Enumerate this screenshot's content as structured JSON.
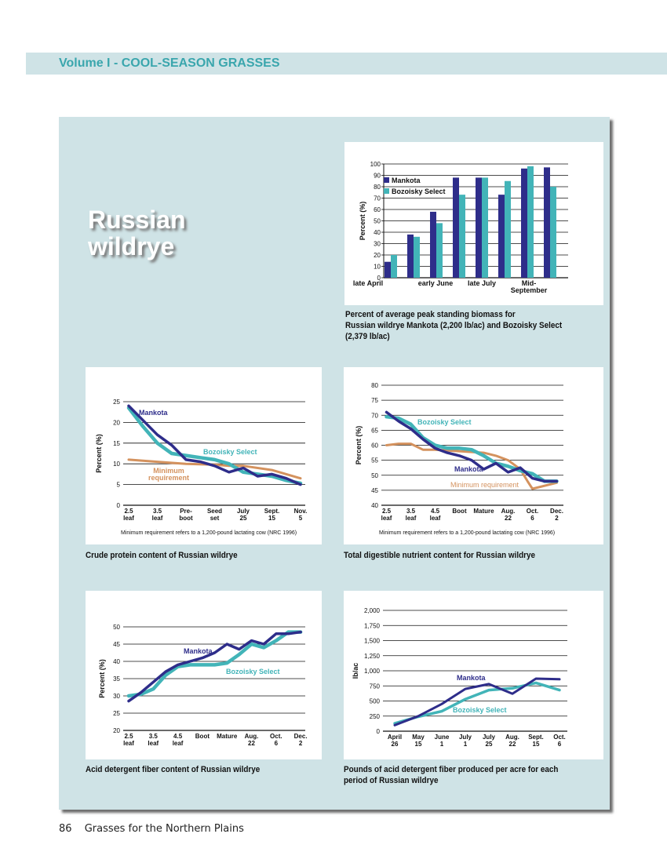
{
  "header": {
    "section_title": "Volume I - COOL-SEASON GRASSES"
  },
  "species_title": [
    "Russian",
    "wildrye"
  ],
  "footer": {
    "page_number": "86",
    "book_title": "Grasses for the Northern Plains"
  },
  "colors": {
    "mankota": "#2e2d8a",
    "bozoisky": "#42b4b8",
    "minimum": "#d4925e",
    "panel": "#cfe3e6",
    "band_text": "#3aa6ad"
  },
  "captions": {
    "biomass": [
      "Percent of average peak standing biomass for",
      "Russian wildrye Mankota (2,200 lb/ac) and Bozoisky Select",
      "(2,379 lb/ac)"
    ],
    "protein": [
      "Crude protein content of Russian wildrye"
    ],
    "tdn": [
      "Total digestible nutrient content for Russian wildrye"
    ],
    "adf": [
      "Acid detergent fiber content of Russian wildrye"
    ],
    "adf_lb": [
      "Pounds of acid detergent fiber produced per acre for each",
      "period of Russian wildrye"
    ]
  },
  "chart_data": [
    {
      "id": "biomass",
      "type": "bar",
      "ylabel": "Percent (%)",
      "ylim": [
        0,
        100
      ],
      "yticks": [
        0,
        10,
        20,
        30,
        40,
        50,
        60,
        70,
        80,
        90,
        100
      ],
      "xlabels": [
        [
          "late April"
        ],
        [
          "early June"
        ],
        [
          "late July"
        ],
        [
          "Mid-",
          "September"
        ]
      ],
      "legend": "top-left",
      "series": [
        {
          "name": "Mankota",
          "color": "#2e2d8a",
          "values": [
            14,
            38,
            58,
            88,
            88,
            73,
            96,
            97
          ]
        },
        {
          "name": "Bozoisky Select",
          "color": "#42b4b8",
          "values": [
            20,
            36,
            48,
            73,
            88,
            85,
            98,
            80
          ]
        }
      ]
    },
    {
      "id": "protein",
      "type": "line",
      "ylabel": "Percent (%)",
      "ylim": [
        0,
        25
      ],
      "yticks": [
        0,
        5,
        10,
        15,
        20,
        25
      ],
      "categories": [
        [
          "2.5",
          "leaf"
        ],
        [
          "3.5",
          "leaf"
        ],
        [
          "Pre-",
          "boot"
        ],
        [
          "Seed",
          "set"
        ],
        [
          "July",
          "25"
        ],
        [
          "Sept.",
          "15"
        ],
        [
          "Nov.",
          "5"
        ]
      ],
      "note": "Minimum requirement refers to a 1,200-pound lactating cow (NRC 1996)",
      "series": [
        {
          "name": "Mankota",
          "color": "#2e2d8a",
          "label": "Mankota",
          "x": [
            0,
            0.5,
            1,
            1.5,
            2,
            2.5,
            3,
            3.5,
            4,
            4.5,
            5,
            5.5,
            6
          ],
          "y": [
            24,
            20.5,
            17,
            14.5,
            11,
            10.5,
            9.5,
            8,
            9,
            7,
            7.5,
            6.5,
            5
          ]
        },
        {
          "name": "Bozoisky Select",
          "color": "#42b4b8",
          "label": "Bozoisky Select",
          "x": [
            0,
            0.5,
            1,
            1.5,
            2,
            2.5,
            3,
            3.5,
            4,
            4.5,
            5,
            5.5,
            6
          ],
          "y": [
            23.5,
            19,
            15,
            12.5,
            12,
            11.5,
            11,
            10,
            8,
            7.5,
            7,
            6,
            5.3
          ]
        },
        {
          "name": "Minimum requirement",
          "color": "#d4925e",
          "label": [
            "Minimum",
            "requirement"
          ],
          "x": [
            0,
            1,
            2,
            3,
            3.5,
            4,
            5,
            6
          ],
          "y": [
            11,
            10.5,
            10,
            9.8,
            9.5,
            9.5,
            8.5,
            6.5
          ]
        }
      ]
    },
    {
      "id": "tdn",
      "type": "line",
      "ylabel": "Percent (%)",
      "ylim": [
        40,
        80
      ],
      "yticks": [
        40,
        45,
        50,
        55,
        60,
        65,
        70,
        75,
        80
      ],
      "categories": [
        [
          "2.5",
          "leaf"
        ],
        [
          "3.5",
          "leaf"
        ],
        [
          "4.5",
          "leaf"
        ],
        [
          "Boot"
        ],
        [
          "Mature"
        ],
        [
          "Aug.",
          "22"
        ],
        [
          "Oct.",
          "6"
        ],
        [
          "Dec.",
          "2"
        ]
      ],
      "note": "Minimum requirement refers to a 1,200-pound lactating cow (NRC 1996)",
      "series": [
        {
          "name": "Mankota",
          "color": "#2e2d8a",
          "label": "Mankota",
          "x": [
            0,
            0.5,
            1,
            1.5,
            2,
            2.5,
            3,
            3.5,
            4,
            4.5,
            5,
            5.5,
            6,
            6.5,
            7
          ],
          "y": [
            71,
            68,
            65.5,
            62,
            59,
            57.5,
            56.5,
            55,
            52,
            54,
            51,
            52.5,
            49,
            48,
            48
          ]
        },
        {
          "name": "Bozoisky Select",
          "color": "#42b4b8",
          "label": "Bozoisky Select",
          "x": [
            0,
            0.5,
            1,
            1.5,
            2,
            2.5,
            3,
            3.5,
            4,
            4.5,
            5,
            5.5,
            6,
            6.5,
            7
          ],
          "y": [
            69.5,
            69,
            67,
            62.5,
            60,
            59,
            59,
            58.5,
            56.5,
            54,
            53,
            51.5,
            50.5,
            48,
            48
          ]
        },
        {
          "name": "Minimum requirement",
          "color": "#d4925e",
          "label": "Minimum requirement",
          "x": [
            0,
            0.5,
            1,
            1.5,
            2,
            3,
            4,
            4.5,
            5,
            5.5,
            5.8,
            6,
            7
          ],
          "y": [
            60,
            60.5,
            60.5,
            58.5,
            58.5,
            58,
            57.5,
            56.5,
            55,
            52,
            48,
            45.5,
            47.5
          ]
        }
      ]
    },
    {
      "id": "adf",
      "type": "line",
      "ylabel": "Percent (%)",
      "ylim": [
        20,
        50
      ],
      "yticks": [
        20,
        25,
        30,
        35,
        40,
        45,
        50
      ],
      "categories": [
        [
          "2.5",
          "leaf"
        ],
        [
          "3.5",
          "leaf"
        ],
        [
          "4.5",
          "leaf"
        ],
        [
          "Boot"
        ],
        [
          "Mature"
        ],
        [
          "Aug.",
          "22"
        ],
        [
          "Oct.",
          "6"
        ],
        [
          "Dec.",
          "2"
        ]
      ],
      "series": [
        {
          "name": "Mankota",
          "color": "#2e2d8a",
          "label": "Mankota",
          "x": [
            0,
            0.5,
            1,
            1.5,
            2,
            2.5,
            3,
            3.5,
            4,
            4.5,
            5,
            5.5,
            6,
            6.5,
            7
          ],
          "y": [
            28.5,
            31,
            34,
            37,
            39,
            40,
            41,
            42.5,
            45,
            43.5,
            46,
            45,
            48,
            48,
            48.5
          ]
        },
        {
          "name": "Bozoisky Select",
          "color": "#42b4b8",
          "label": "Bozoisky Select",
          "x": [
            0,
            0.5,
            1,
            1.5,
            2,
            2.5,
            3,
            3.5,
            4,
            4.5,
            5,
            5.5,
            6,
            6.5,
            7
          ],
          "y": [
            30,
            30.5,
            32,
            36,
            38.5,
            39,
            39,
            39,
            39.5,
            42,
            45,
            44,
            46,
            48.5,
            48.5
          ]
        }
      ]
    },
    {
      "id": "adf_lb",
      "type": "line",
      "ylabel": "lb/ac",
      "ylim": [
        0,
        2000
      ],
      "yticks": [
        0,
        250,
        500,
        750,
        1000,
        1250,
        1500,
        1750,
        2000
      ],
      "ytick_labels": [
        "0",
        "250",
        "500",
        "750",
        "1,000",
        "1,250",
        "1,500",
        "1,750",
        "2,000"
      ],
      "categories": [
        [
          "April",
          "26"
        ],
        [
          "May",
          "15"
        ],
        [
          "June",
          "1"
        ],
        [
          "July",
          "1"
        ],
        [
          "July",
          "25"
        ],
        [
          "Aug.",
          "22"
        ],
        [
          "Sept.",
          "15"
        ],
        [
          "Oct.",
          "6"
        ]
      ],
      "series": [
        {
          "name": "Mankota",
          "color": "#2e2d8a",
          "label": "Mankota",
          "x": [
            0,
            1,
            2,
            3,
            4,
            5,
            6,
            7
          ],
          "y": [
            100,
            250,
            450,
            700,
            780,
            620,
            870,
            860
          ]
        },
        {
          "name": "Bozoisky Select",
          "color": "#42b4b8",
          "label": "Bozoisky Select",
          "x": [
            0,
            1,
            2,
            3,
            4,
            5,
            6,
            7
          ],
          "y": [
            130,
            240,
            330,
            530,
            680,
            710,
            800,
            680
          ]
        }
      ]
    }
  ]
}
